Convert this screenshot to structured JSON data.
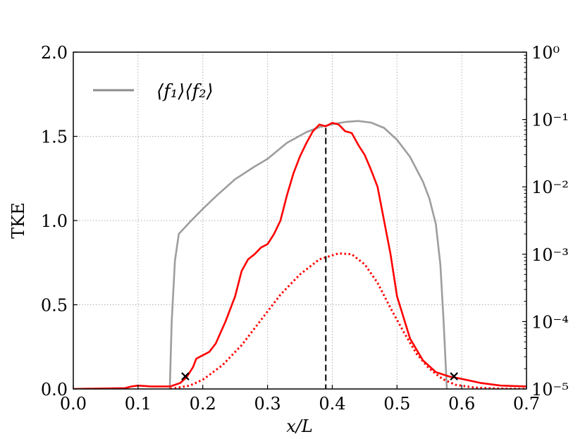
{
  "chart_data": {
    "type": "line",
    "xlabel": "x/L",
    "ylabel": "TKE",
    "xlim": [
      0.0,
      0.7
    ],
    "ylim": [
      0.0,
      2.0
    ],
    "y2lim": [
      1e-05,
      1
    ],
    "y2scale": "log",
    "grid": true,
    "legend_position": "top-left",
    "x_ticks": [
      "0.0",
      "0.1",
      "0.2",
      "0.3",
      "0.4",
      "0.5",
      "0.6",
      "0.7"
    ],
    "y_ticks": [
      "0.0",
      "0.5",
      "1.0",
      "1.5",
      "2.0"
    ],
    "y2_ticks": [
      "10⁻⁵",
      "10⁻⁴",
      "10⁻³",
      "10⁻²",
      "10⁻¹",
      "10⁰"
    ],
    "series": [
      {
        "name": "⟨f₁⟩⟨f₂⟩",
        "axis": "right",
        "color": "#8c8c8c",
        "style": "solid",
        "points": [
          [
            0.149,
            1e-05
          ],
          [
            0.152,
            0.0001
          ],
          [
            0.157,
            0.0008
          ],
          [
            0.163,
            0.002
          ],
          [
            0.18,
            0.003
          ],
          [
            0.2,
            0.0047
          ],
          [
            0.22,
            0.0072
          ],
          [
            0.25,
            0.013
          ],
          [
            0.28,
            0.02
          ],
          [
            0.3,
            0.026
          ],
          [
            0.33,
            0.045
          ],
          [
            0.36,
            0.065
          ],
          [
            0.38,
            0.077
          ],
          [
            0.4,
            0.085
          ],
          [
            0.42,
            0.092
          ],
          [
            0.44,
            0.095
          ],
          [
            0.46,
            0.09
          ],
          [
            0.48,
            0.075
          ],
          [
            0.5,
            0.05
          ],
          [
            0.52,
            0.028
          ],
          [
            0.54,
            0.012
          ],
          [
            0.55,
            0.0067
          ],
          [
            0.56,
            0.0028
          ],
          [
            0.567,
            0.0007
          ],
          [
            0.572,
            0.0001
          ],
          [
            0.577,
            1e-05
          ]
        ]
      },
      {
        "name": "",
        "axis": "left",
        "color": "#ff0000",
        "style": "solid",
        "points": [
          [
            0.0,
            0.0
          ],
          [
            0.08,
            0.005
          ],
          [
            0.09,
            0.015
          ],
          [
            0.1,
            0.02
          ],
          [
            0.12,
            0.015
          ],
          [
            0.15,
            0.015
          ],
          [
            0.165,
            0.035
          ],
          [
            0.175,
            0.07
          ],
          [
            0.185,
            0.13
          ],
          [
            0.19,
            0.18
          ],
          [
            0.2,
            0.2
          ],
          [
            0.21,
            0.22
          ],
          [
            0.22,
            0.27
          ],
          [
            0.235,
            0.4
          ],
          [
            0.25,
            0.55
          ],
          [
            0.26,
            0.7
          ],
          [
            0.27,
            0.77
          ],
          [
            0.28,
            0.8
          ],
          [
            0.29,
            0.84
          ],
          [
            0.3,
            0.86
          ],
          [
            0.31,
            0.92
          ],
          [
            0.32,
            1.0
          ],
          [
            0.33,
            1.15
          ],
          [
            0.34,
            1.28
          ],
          [
            0.35,
            1.38
          ],
          [
            0.36,
            1.46
          ],
          [
            0.37,
            1.53
          ],
          [
            0.38,
            1.57
          ],
          [
            0.39,
            1.56
          ],
          [
            0.4,
            1.58
          ],
          [
            0.41,
            1.57
          ],
          [
            0.42,
            1.53
          ],
          [
            0.43,
            1.52
          ],
          [
            0.44,
            1.45
          ],
          [
            0.45,
            1.39
          ],
          [
            0.46,
            1.3
          ],
          [
            0.47,
            1.2
          ],
          [
            0.48,
            1.0
          ],
          [
            0.49,
            0.8
          ],
          [
            0.5,
            0.55
          ],
          [
            0.52,
            0.3
          ],
          [
            0.54,
            0.17
          ],
          [
            0.56,
            0.1
          ],
          [
            0.58,
            0.075
          ],
          [
            0.6,
            0.06
          ],
          [
            0.63,
            0.035
          ],
          [
            0.66,
            0.02
          ],
          [
            0.7,
            0.015
          ]
        ]
      },
      {
        "name": "",
        "axis": "left",
        "color": "#ff0000",
        "style": "dotted",
        "points": [
          [
            0.15,
            0.0
          ],
          [
            0.18,
            0.02
          ],
          [
            0.2,
            0.055
          ],
          [
            0.23,
            0.14
          ],
          [
            0.26,
            0.26
          ],
          [
            0.29,
            0.41
          ],
          [
            0.32,
            0.56
          ],
          [
            0.35,
            0.68
          ],
          [
            0.38,
            0.77
          ],
          [
            0.41,
            0.805
          ],
          [
            0.43,
            0.8
          ],
          [
            0.45,
            0.74
          ],
          [
            0.47,
            0.63
          ],
          [
            0.49,
            0.48
          ],
          [
            0.51,
            0.34
          ],
          [
            0.53,
            0.21
          ],
          [
            0.55,
            0.12
          ],
          [
            0.57,
            0.06
          ],
          [
            0.59,
            0.025
          ],
          [
            0.62,
            0.008
          ],
          [
            0.66,
            0.002
          ],
          [
            0.7,
            0.0
          ]
        ]
      }
    ],
    "vline": {
      "x": 0.39,
      "y": 1.55,
      "style": "dashed",
      "color": "#000000"
    },
    "markers": [
      {
        "x": 0.173,
        "y": 0.075,
        "symbol": "x"
      },
      {
        "x": 0.588,
        "y": 0.075,
        "symbol": "x"
      }
    ]
  }
}
